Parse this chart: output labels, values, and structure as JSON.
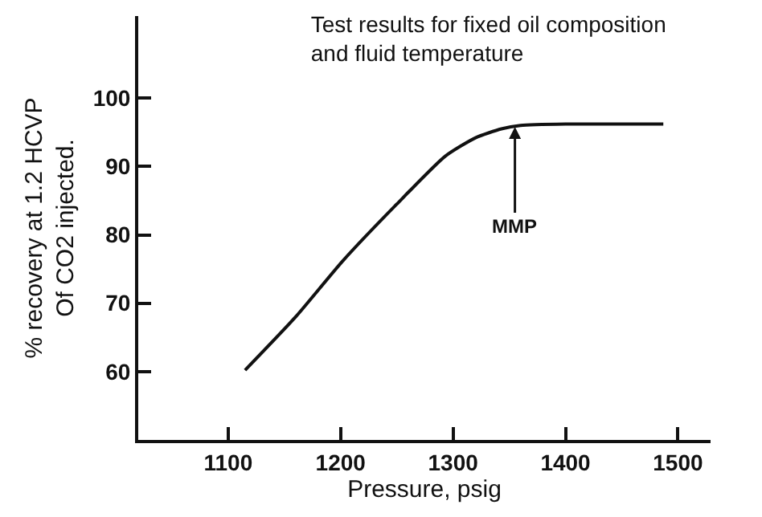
{
  "chart_data": {
    "type": "line",
    "title": "Test results for fixed oil composition\nand fluid temperature",
    "xlabel": "Pressure, psig",
    "ylabel": "% recovery at 1.2 HCVP\nOf CO2 injected.",
    "x": [
      1115,
      1160,
      1202,
      1250,
      1293,
      1320,
      1343,
      1360,
      1400,
      1487
    ],
    "series": [
      {
        "color": "#111111",
        "values": [
          60.2,
          68,
          76.2,
          84.5,
          91.5,
          94.2,
          95.5,
          96,
          96.2,
          96.2
        ]
      }
    ],
    "annotations": [
      {
        "text": "MMP",
        "x": 1355,
        "y": 95.8
      }
    ],
    "xlim": [
      1020,
      1529
    ],
    "xticks": [
      1100,
      1200,
      1300,
      1400,
      1500
    ],
    "ylim": [
      50,
      112
    ],
    "yticks": [
      60,
      70,
      80,
      90,
      100
    ],
    "grid": false,
    "marker": "none",
    "line_style": "solid"
  }
}
